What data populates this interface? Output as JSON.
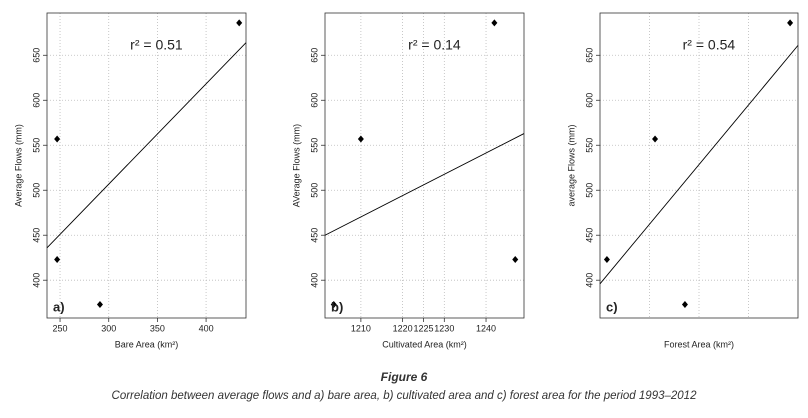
{
  "chart_data": [
    {
      "type": "scatter",
      "panel_label": "a)",
      "annotation": "r² = 0.51",
      "x_label": "Bare Area (km²)",
      "y_label": "Average Flows (mm)",
      "series": [
        {
          "color": "#000000",
          "x": [
            247,
            247,
            291,
            434
          ],
          "values": [
            557,
            423,
            373,
            686
          ]
        }
      ],
      "trend": {
        "color": "#000000",
        "x": [
          236.6,
          441
        ],
        "values": [
          436,
          664
        ]
      },
      "xlim": [
        236.6,
        441
      ],
      "ylim": [
        358,
        697
      ],
      "xticks": [
        250,
        300,
        350,
        400
      ],
      "yticks": [
        400,
        450,
        500,
        550,
        600,
        650
      ],
      "grid": true
    },
    {
      "type": "scatter",
      "panel_label": "b)",
      "annotation": "r² = 0.14",
      "x_label": "Cultivated Area (km²)",
      "y_label": "AVerage Flows (mm)",
      "series": [
        {
          "color": "#000000",
          "x": [
            1210,
            1203.5,
            1242,
            1247
          ],
          "values": [
            557,
            373,
            686,
            423
          ]
        }
      ],
      "trend": {
        "color": "#000000",
        "x": [
          1201.4,
          1249.1
        ],
        "values": [
          450,
          563
        ]
      },
      "xlim": [
        1201.4,
        1249.1
      ],
      "ylim": [
        358,
        697
      ],
      "xticks": [
        1210,
        1220,
        1225,
        1230,
        1240
      ],
      "yticks": [
        400,
        450,
        500,
        550,
        600,
        650
      ],
      "grid": true
    },
    {
      "type": "scatter",
      "panel_label": "c)",
      "annotation": "r² = 0.54",
      "x_label": "Forest Area (km²)",
      "y_label": "average Flows (mm)",
      "series": [
        {
          "color": "#000000",
          "x": [
            3.5,
            27.8,
            42.9,
            96
          ],
          "values": [
            423,
            557,
            373,
            686
          ]
        }
      ],
      "trend": {
        "color": "#000000",
        "x": [
          0,
          100
        ],
        "values": [
          396,
          661
        ]
      },
      "xlim": [
        0,
        100
      ],
      "ylim": [
        358,
        697
      ],
      "yticks": [
        400,
        450,
        500,
        550,
        600,
        650
      ],
      "grid": true
    }
  ],
  "caption": {
    "title": "Figure 6",
    "text": "Correlation between average flows and a) bare area, b) cultivated area and c) forest area for the period 1993–2012"
  }
}
